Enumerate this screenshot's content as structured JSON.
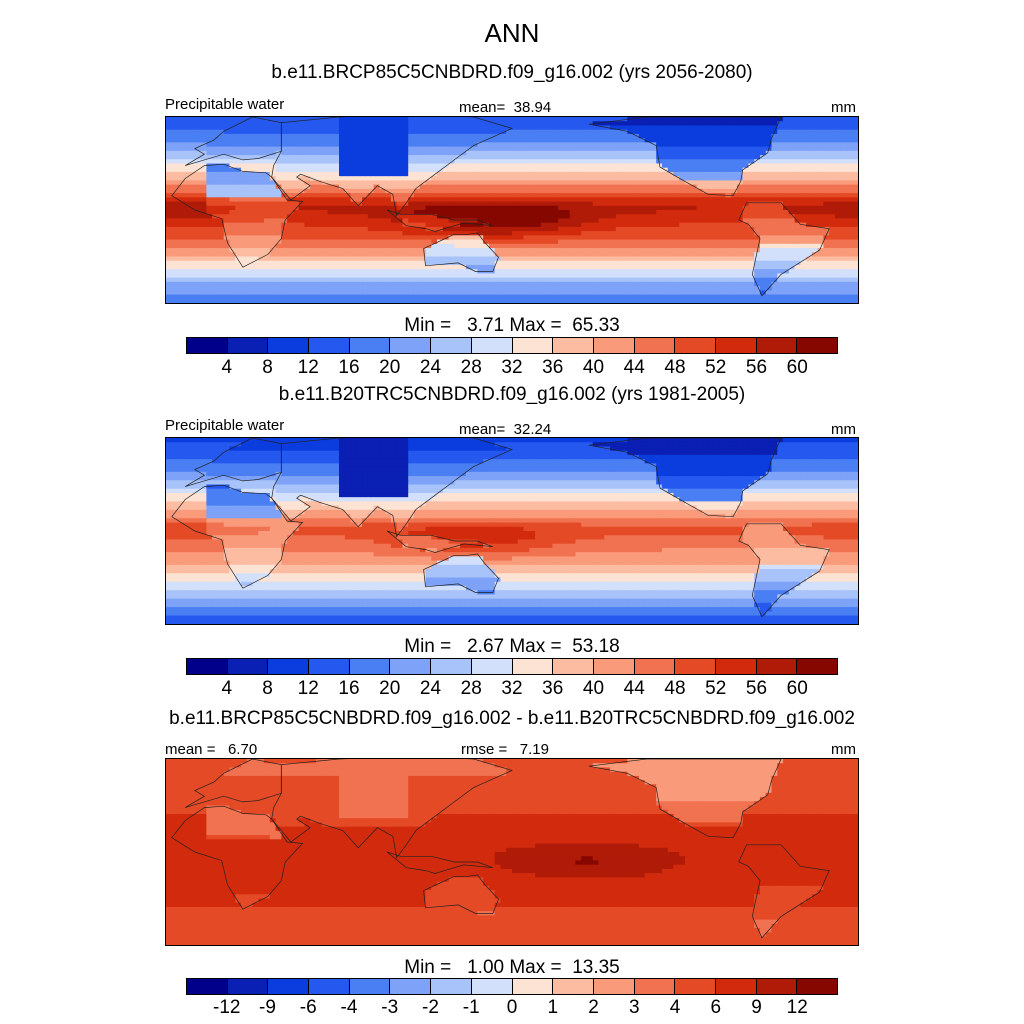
{
  "chart_data": {
    "type": "heatmap",
    "title": "ANN",
    "palette": [
      "#00008b",
      "#0a1fb4",
      "#0b3cde",
      "#2458ee",
      "#4a7ef3",
      "#7da2f7",
      "#a8c2fa",
      "#d2e0fc",
      "#fde3d4",
      "#fbbca2",
      "#f99a7a",
      "#f07250",
      "#e54a26",
      "#d22a0d",
      "#b01b08",
      "#860600"
    ],
    "panels": [
      {
        "id": "future",
        "case": "b.e11.BRCP85C5CNBDRD.f09_g16.002 (yrs 2056-2080)",
        "variable": "Precipitable water",
        "mean_label": "mean=",
        "mean_value": "38.94",
        "units": "mm",
        "min_label": "Min =",
        "min_value": "3.71",
        "max_label": "Max =",
        "max_value": "65.33",
        "levels": [
          "4",
          "8",
          "12",
          "16",
          "20",
          "24",
          "28",
          "32",
          "36",
          "40",
          "44",
          "48",
          "52",
          "56",
          "60"
        ],
        "field": {
          "equator_value": 52,
          "pole_value": 12,
          "warm_pool_peak": 64,
          "warm_pool_lon": 150,
          "atlantic_peak": 56,
          "tibet_min": 6
        }
      },
      {
        "id": "present",
        "case": "b.e11.B20TRC5CNBDRD.f09_g16.002 (yrs 1981-2005)",
        "variable": "Precipitable water",
        "mean_label": "mean=",
        "mean_value": "32.24",
        "units": "mm",
        "min_label": "Min =",
        "min_value": "2.67",
        "max_label": "Max =",
        "max_value": "53.18",
        "levels": [
          "4",
          "8",
          "12",
          "16",
          "20",
          "24",
          "28",
          "32",
          "36",
          "40",
          "44",
          "48",
          "52",
          "56",
          "60"
        ],
        "field": {
          "equator_value": 45,
          "pole_value": 10,
          "warm_pool_peak": 53,
          "warm_pool_lon": 140,
          "atlantic_peak": 48,
          "tibet_min": 4
        }
      },
      {
        "id": "difference",
        "case": "b.e11.BRCP85C5CNBDRD.f09_g16.002 - b.e11.B20TRC5CNBDRD.f09_g16.002",
        "mean_label": "mean =",
        "mean_value": "6.70",
        "rmse_label": "rmse =",
        "rmse_value": "7.19",
        "units": "mm",
        "min_label": "Min =",
        "min_value": "1.00",
        "max_label": "Max =",
        "max_value": "13.35",
        "levels": [
          "-12",
          "-9",
          "-6",
          "-4",
          "-3",
          "-2",
          "-1",
          "0",
          "1",
          "2",
          "3",
          "4",
          "6",
          "9",
          "12"
        ],
        "field": {
          "equator_value": 7.5,
          "pole_value": 4,
          "warm_pool_peak": 12,
          "warm_pool_lon": 200,
          "atlantic_peak": 8,
          "tibet_min": 1
        }
      }
    ]
  }
}
